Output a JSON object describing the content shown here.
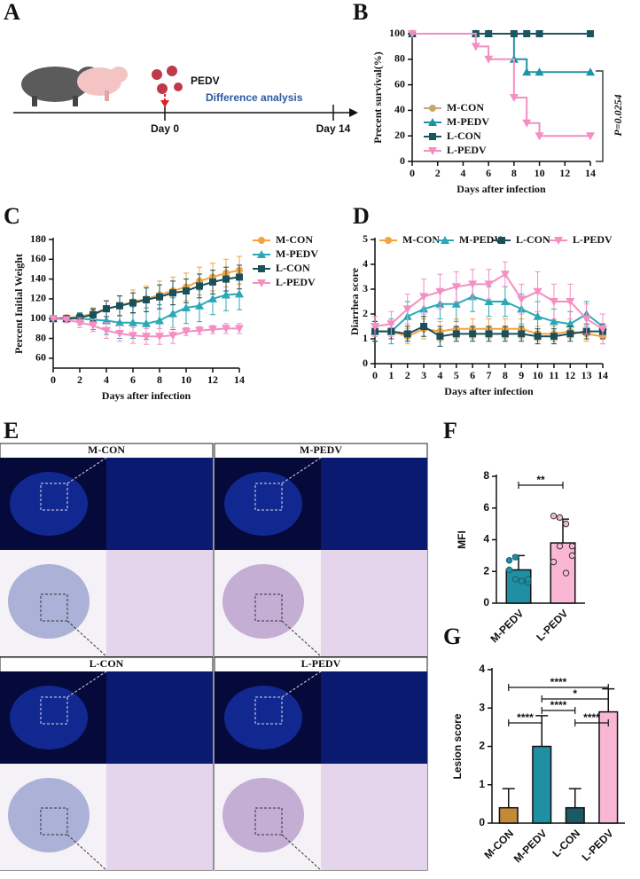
{
  "panel_labels": [
    "A",
    "B",
    "C",
    "D",
    "E",
    "F",
    "G"
  ],
  "schematic": {
    "virus": "PEDV",
    "start": "Day 0",
    "analysis": "Difference analysis",
    "end": "Day 14"
  },
  "micrographs": {
    "titles": [
      "M-CON",
      "M-PEDV",
      "L-CON",
      "L-PEDV"
    ]
  },
  "chart_data": [
    {
      "type": "step",
      "y_label": "Precent survival(%)",
      "x_label": "Days after infection",
      "annotation": "P=0.0254",
      "x": [
        0,
        5,
        6,
        8,
        9,
        10,
        14
      ],
      "xlim": [
        0,
        14
      ],
      "xticks": [
        0,
        2,
        4,
        6,
        8,
        10,
        12,
        14
      ],
      "ylim": [
        0,
        100
      ],
      "yticks": [
        0,
        20,
        40,
        60,
        80,
        100
      ],
      "legend": "center left",
      "series": [
        {
          "name": "M-CON",
          "color": "#c9a66b",
          "marker": "circle",
          "values": [
            100,
            100,
            100,
            100,
            100,
            100,
            100
          ]
        },
        {
          "name": "M-PEDV",
          "color": "#1e93a6",
          "marker": "triangle",
          "values": [
            100,
            100,
            100,
            80,
            70,
            70,
            70
          ]
        },
        {
          "name": "L-CON",
          "color": "#1b5560",
          "marker": "square",
          "values": [
            100,
            100,
            100,
            100,
            100,
            100,
            100
          ]
        },
        {
          "name": "L-PEDV",
          "color": "#f28fc0",
          "marker": "down",
          "values": [
            100,
            90,
            80,
            50,
            30,
            20,
            20
          ]
        }
      ]
    },
    {
      "type": "line",
      "y_label": "Percent Initial Weight",
      "x_label": "Days after infection",
      "x": [
        0,
        1,
        2,
        3,
        4,
        5,
        6,
        7,
        8,
        9,
        10,
        11,
        12,
        13,
        14
      ],
      "xlim": [
        0,
        14
      ],
      "xticks": [
        0,
        2,
        4,
        6,
        8,
        10,
        12,
        14
      ],
      "ylim": [
        50,
        180
      ],
      "yticks": [
        60,
        80,
        100,
        120,
        140,
        160,
        180
      ],
      "legend": "upper right",
      "series": [
        {
          "name": "M-CON",
          "color": "#f4a340",
          "marker": "circle",
          "values": [
            100,
            101,
            102,
            105,
            110,
            113,
            117,
            120,
            124,
            128,
            132,
            138,
            142,
            146,
            149
          ],
          "errors": [
            1,
            2,
            4,
            6,
            8,
            10,
            12,
            13,
            14,
            14,
            14,
            14,
            14,
            14,
            14
          ]
        },
        {
          "name": "M-PEDV",
          "color": "#2aa9b5",
          "marker": "triangle",
          "values": [
            100,
            100,
            100,
            99,
            98,
            96,
            96,
            95,
            98,
            105,
            111,
            113,
            120,
            124,
            125
          ],
          "errors": [
            1,
            3,
            6,
            10,
            14,
            16,
            16,
            16,
            16,
            16,
            16,
            16,
            16,
            16,
            16
          ]
        },
        {
          "name": "L-CON",
          "color": "#1b4f5a",
          "marker": "square",
          "values": [
            100,
            100,
            101,
            104,
            110,
            113,
            116,
            119,
            122,
            126,
            128,
            133,
            137,
            140,
            142
          ],
          "errors": [
            1,
            2,
            4,
            6,
            8,
            10,
            10,
            12,
            12,
            12,
            12,
            12,
            12,
            12,
            12
          ]
        },
        {
          "name": "L-PEDV",
          "color": "#f38fc2",
          "marker": "down",
          "values": [
            100,
            99,
            96,
            93,
            88,
            85,
            83,
            82,
            82,
            83,
            87,
            88,
            89,
            90,
            90
          ],
          "errors": [
            1,
            3,
            5,
            6,
            8,
            8,
            8,
            8,
            8,
            8,
            4,
            4,
            4,
            5,
            5
          ]
        }
      ]
    },
    {
      "type": "line",
      "y_label": "Diarrhea score",
      "x_label": "Days after infection",
      "x": [
        0,
        1,
        2,
        3,
        4,
        5,
        6,
        7,
        8,
        9,
        10,
        11,
        12,
        13,
        14
      ],
      "xlim": [
        0,
        14
      ],
      "xticks": [
        0,
        1,
        2,
        3,
        4,
        5,
        6,
        7,
        8,
        9,
        10,
        11,
        12,
        13,
        14
      ],
      "ylim": [
        0,
        5
      ],
      "yticks": [
        0,
        1,
        2,
        3,
        4,
        5
      ],
      "legend": "upper center",
      "series": [
        {
          "name": "M-CON",
          "color": "#f4a340",
          "marker": "circle",
          "values": [
            1.3,
            1.3,
            1.1,
            1.4,
            1.3,
            1.4,
            1.4,
            1.4,
            1.4,
            1.4,
            1.2,
            1.2,
            1.3,
            1.2,
            1.1
          ],
          "errors": [
            0.4,
            0.3,
            0.3,
            0.4,
            0.4,
            0.4,
            0.4,
            0.4,
            0.4,
            0.4,
            0.3,
            0.3,
            0.3,
            0.3,
            0.3
          ]
        },
        {
          "name": "M-PEDV",
          "color": "#2aa9b5",
          "marker": "triangle",
          "values": [
            1.3,
            1.3,
            1.9,
            2.2,
            2.4,
            2.4,
            2.7,
            2.5,
            2.5,
            2.2,
            1.9,
            1.7,
            1.6,
            2.0,
            1.5
          ],
          "errors": [
            0.4,
            0.5,
            0.6,
            0.6,
            0.6,
            0.7,
            0.6,
            0.6,
            0.6,
            0.6,
            0.6,
            0.5,
            0.5,
            0.5,
            0.5
          ]
        },
        {
          "name": "L-CON",
          "color": "#1b4f5a",
          "marker": "square",
          "values": [
            1.3,
            1.3,
            1.2,
            1.5,
            1.1,
            1.2,
            1.2,
            1.2,
            1.2,
            1.2,
            1.1,
            1.1,
            1.2,
            1.3,
            1.3
          ],
          "errors": [
            0.4,
            0.3,
            0.3,
            0.4,
            0.4,
            0.3,
            0.3,
            0.3,
            0.3,
            0.3,
            0.3,
            0.3,
            0.3,
            0.3,
            0.3
          ]
        },
        {
          "name": "L-PEDV",
          "color": "#f38fc2",
          "marker": "down",
          "values": [
            1.5,
            1.6,
            2.2,
            2.7,
            2.9,
            3.1,
            3.2,
            3.2,
            3.6,
            2.6,
            2.9,
            2.5,
            2.5,
            1.8,
            1.4
          ],
          "errors": [
            0.4,
            0.5,
            0.6,
            0.7,
            0.7,
            0.6,
            0.6,
            0.6,
            0.5,
            0.6,
            0.8,
            0.7,
            0.7,
            0.6,
            0.6
          ]
        }
      ]
    },
    {
      "type": "bar",
      "y_label": "MFI",
      "categories": [
        "M-PEDV",
        "L-PEDV"
      ],
      "values": [
        2.1,
        3.8
      ],
      "errors": [
        0.9,
        1.5
      ],
      "colors": [
        "#1f8fa3",
        "#f9b6d5"
      ],
      "points": [
        [
          2.7,
          2.9,
          1.4,
          1.3,
          2.1,
          1.5,
          1.4,
          1.5
        ],
        [
          5.5,
          5.4,
          5.0,
          3.6,
          2.6,
          3.6,
          1.9,
          3.0
        ]
      ],
      "ylim": [
        0,
        8
      ],
      "yticks": [
        0,
        2,
        4,
        6,
        8
      ],
      "significance": [
        {
          "between": [
            "M-PEDV",
            "L-PEDV"
          ],
          "label": "**"
        }
      ]
    },
    {
      "type": "bar",
      "y_label": "Lesion score",
      "categories": [
        "M-CON",
        "M-PEDV",
        "L-CON",
        "L-PEDV"
      ],
      "values": [
        0.4,
        2.0,
        0.4,
        2.9
      ],
      "errors": [
        0.5,
        0.8,
        0.5,
        0.6
      ],
      "colors": [
        "#c48a3c",
        "#1f8fa3",
        "#1c5a63",
        "#f9b6d5"
      ],
      "ylim": [
        0,
        4
      ],
      "yticks": [
        0,
        1,
        2,
        3,
        4
      ],
      "significance": [
        {
          "between": [
            "M-CON",
            "L-PEDV"
          ],
          "label": "****"
        },
        {
          "between": [
            "M-PEDV",
            "L-PEDV"
          ],
          "label": "*"
        },
        {
          "between": [
            "M-PEDV",
            "L-CON"
          ],
          "label": "****"
        },
        {
          "between": [
            "M-CON",
            "M-PEDV"
          ],
          "label": "****"
        },
        {
          "between": [
            "L-CON",
            "L-PEDV"
          ],
          "label": "****"
        }
      ]
    }
  ]
}
